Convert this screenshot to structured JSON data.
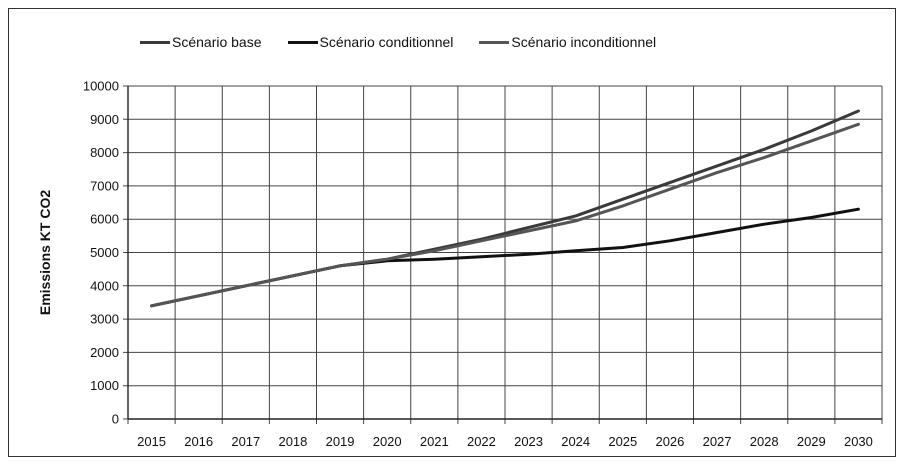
{
  "chart_data": {
    "type": "line",
    "title": "",
    "xlabel": "",
    "ylabel": "Emissions  KT CO2",
    "categories": [
      "2015",
      "2016",
      "2017",
      "2018",
      "2019",
      "2020",
      "2021",
      "2022",
      "2023",
      "2024",
      "2025",
      "2026",
      "2027",
      "2028",
      "2029",
      "2030"
    ],
    "ylim": [
      0,
      10000
    ],
    "yticks": [
      0,
      1000,
      2000,
      3000,
      4000,
      5000,
      6000,
      7000,
      8000,
      9000,
      10000
    ],
    "grid": true,
    "legend_position": "top",
    "series": [
      {
        "name": "Scénario base",
        "color": "#3a3a3a",
        "values": [
          3400,
          3700,
          4000,
          4300,
          4600,
          4800,
          5100,
          5400,
          5750,
          6100,
          6600,
          7100,
          7600,
          8100,
          8650,
          9250
        ]
      },
      {
        "name": "Scénario conditionnel",
        "color": "#111111",
        "values": [
          3400,
          3700,
          4000,
          4300,
          4600,
          4750,
          4800,
          4870,
          4950,
          5050,
          5150,
          5350,
          5600,
          5850,
          6050,
          6300
        ]
      },
      {
        "name": "Scénario inconditionnel",
        "color": "#555555",
        "values": [
          3400,
          3700,
          4000,
          4300,
          4600,
          4800,
          5050,
          5350,
          5650,
          5950,
          6400,
          6900,
          7400,
          7850,
          8350,
          8850
        ]
      }
    ]
  }
}
